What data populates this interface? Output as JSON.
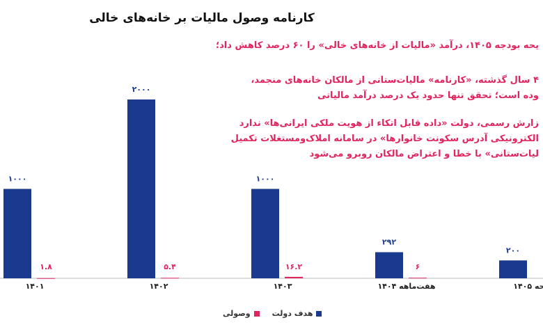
{
  "chart_data": {
    "type": "bar",
    "title": "کارنامه وصول مالیات بر خانه‌های خالی",
    "annotations": [
      "یحه بودجه ۱۴۰۵، درآمد «مالیات از خانه‌های خالی» را ۶۰ درصد کاهش داد؛",
      "۴ سال گذشته، «کارنامه» مالیات‌ستانی از مالکان خانه‌های منجمد،",
      "وده است؛ تحقق تنها حدود یک درصد درآمد مالیاتی",
      "زارش رسمی، دولت «داده قابل اتکاء از هویت ملکی ایرانی‌ها» ندارد",
      "الکترونیکی آدرس سکونت خانوارها» در سامانه املاک‌و‌مستغلات تکمیل",
      "لیات‌ستانی» با خطا و اعتراض مالکان روبرو می‌شود"
    ],
    "categories": [
      "۱۴۰۱",
      "۱۴۰۲",
      "۱۴۰۳",
      "هفت‌ماهه ۱۴۰۴",
      "یحه ۱۴۰۵"
    ],
    "series": [
      {
        "name": "هدف دولت",
        "color": "#1a3a8f",
        "values": [
          1000,
          2000,
          1000,
          292,
          200
        ],
        "value_labels": [
          "۱۰۰۰",
          "۲۰۰۰",
          "۱۰۰۰",
          "۲۹۲",
          "۲۰۰"
        ]
      },
      {
        "name": "وصولی",
        "color": "#e0245e",
        "values": [
          1.8,
          5.4,
          16.2,
          6,
          null
        ],
        "value_labels": [
          "۱.۸",
          "۵.۴",
          "۱۶.۲",
          "۶",
          null
        ]
      }
    ],
    "ylim": [
      0,
      2000
    ]
  }
}
